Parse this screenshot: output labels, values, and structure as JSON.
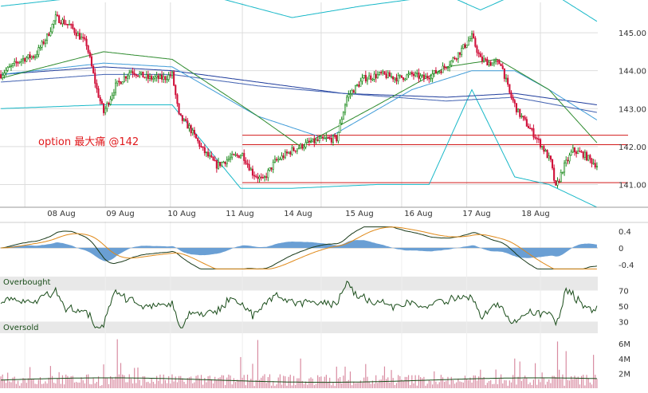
{
  "chart_data": [
    {
      "type": "candlestick",
      "annotation": "option 最大痛 @142",
      "y_ticks": [
        "145.00",
        "144.00",
        "143.00",
        "142.00",
        "141.00"
      ],
      "x_ticks": [
        "08 Aug",
        "09 Aug",
        "10 Aug",
        "11 Aug",
        "14 Aug",
        "15 Aug",
        "16 Aug",
        "17 Aug",
        "18 Aug"
      ],
      "ylim": [
        140.4,
        145.8
      ],
      "grid": true,
      "anchors": [
        [
          0,
          143.9
        ],
        [
          12,
          144.3
        ],
        [
          20,
          144.4
        ],
        [
          27,
          144.9
        ],
        [
          32,
          145.4
        ],
        [
          40,
          145.2
        ],
        [
          50,
          144.7
        ],
        [
          56,
          143.5
        ],
        [
          60,
          142.9
        ],
        [
          67,
          143.6
        ],
        [
          76,
          144.0
        ],
        [
          86,
          143.8
        ],
        [
          95,
          143.8
        ],
        [
          100,
          143.9
        ],
        [
          104,
          142.8
        ],
        [
          110,
          142.5
        ],
        [
          118,
          141.9
        ],
        [
          126,
          141.5
        ],
        [
          134,
          141.7
        ],
        [
          141,
          141.8
        ],
        [
          147,
          141.3
        ],
        [
          153,
          141.1
        ],
        [
          160,
          141.6
        ],
        [
          170,
          141.9
        ],
        [
          180,
          142.1
        ],
        [
          190,
          142.2
        ],
        [
          196,
          142.2
        ],
        [
          202,
          143.3
        ],
        [
          212,
          143.8
        ],
        [
          222,
          143.9
        ],
        [
          232,
          143.8
        ],
        [
          240,
          143.9
        ],
        [
          247,
          143.8
        ],
        [
          256,
          144.0
        ],
        [
          262,
          144.2
        ],
        [
          268,
          144.5
        ],
        [
          275,
          144.9
        ],
        [
          280,
          144.3
        ],
        [
          286,
          144.2
        ],
        [
          292,
          144.2
        ],
        [
          297,
          143.4
        ],
        [
          302,
          142.9
        ],
        [
          310,
          142.4
        ],
        [
          316,
          142.0
        ],
        [
          321,
          141.6
        ],
        [
          324,
          140.9
        ],
        [
          328,
          141.4
        ],
        [
          334,
          141.9
        ],
        [
          340,
          141.8
        ],
        [
          348,
          141.5
        ]
      ],
      "reference_lines": [
        142.3,
        142.05,
        141.05
      ],
      "bollinger_upper": [
        [
          0,
          145.7
        ],
        [
          60,
          146.0
        ],
        [
          120,
          146.0
        ],
        [
          170,
          145.4
        ],
        [
          210,
          145.7
        ],
        [
          260,
          146.0
        ],
        [
          280,
          145.6
        ],
        [
          300,
          146.0
        ],
        [
          320,
          146.1
        ],
        [
          348,
          145.3
        ]
      ],
      "bollinger_lower": [
        [
          0,
          143.0
        ],
        [
          60,
          143.1
        ],
        [
          100,
          143.1
        ],
        [
          140,
          140.9
        ],
        [
          170,
          140.9
        ],
        [
          220,
          141.0
        ],
        [
          250,
          141.0
        ],
        [
          275,
          143.5
        ],
        [
          300,
          141.2
        ],
        [
          320,
          141.0
        ],
        [
          348,
          140.4
        ]
      ],
      "ma_green": [
        [
          0,
          143.8
        ],
        [
          60,
          144.5
        ],
        [
          100,
          144.3
        ],
        [
          150,
          142.8
        ],
        [
          175,
          142.0
        ],
        [
          220,
          143.1
        ],
        [
          260,
          144.1
        ],
        [
          290,
          144.3
        ],
        [
          320,
          143.5
        ],
        [
          348,
          142.1
        ]
      ],
      "ma_blue_1": [
        [
          0,
          143.9
        ],
        [
          60,
          144.1
        ],
        [
          100,
          144.0
        ],
        [
          150,
          143.7
        ],
        [
          200,
          143.4
        ],
        [
          260,
          143.3
        ],
        [
          300,
          143.4
        ],
        [
          348,
          143.1
        ]
      ],
      "ma_blue_2": [
        [
          0,
          143.7
        ],
        [
          60,
          143.9
        ],
        [
          100,
          143.9
        ],
        [
          150,
          143.6
        ],
        [
          200,
          143.4
        ],
        [
          260,
          143.2
        ],
        [
          300,
          143.3
        ],
        [
          348,
          142.9
        ]
      ],
      "ma_cyan": [
        [
          0,
          143.9
        ],
        [
          60,
          144.2
        ],
        [
          100,
          144.1
        ],
        [
          150,
          142.8
        ],
        [
          190,
          142.2
        ],
        [
          240,
          143.5
        ],
        [
          275,
          144.0
        ],
        [
          300,
          144.0
        ],
        [
          320,
          143.5
        ],
        [
          348,
          142.7
        ]
      ]
    },
    {
      "type": "line",
      "indicator": "MACD",
      "y_ticks": [
        "0.4",
        "0",
        "-0.4"
      ],
      "ylim": [
        -0.55,
        0.55
      ]
    },
    {
      "type": "line",
      "indicator": "RSI",
      "y_ticks": [
        "70",
        "50",
        "30"
      ],
      "labels": [
        "Overbought",
        "Oversold"
      ],
      "ylim": [
        15,
        90
      ]
    },
    {
      "type": "bar",
      "indicator": "Volume",
      "y_ticks": [
        "6M",
        "4M",
        "2M"
      ],
      "ylim": [
        0,
        7.2
      ],
      "spikes": [
        [
          29,
          3.0
        ],
        [
          68,
          6.6
        ],
        [
          70,
          3.4
        ],
        [
          140,
          4.2
        ],
        [
          150,
          6.5
        ],
        [
          175,
          4.0
        ],
        [
          280,
          2.5
        ],
        [
          300,
          4.0
        ],
        [
          303,
          3.6
        ],
        [
          325,
          6.3
        ],
        [
          330,
          5.0
        ],
        [
          346,
          4.5
        ]
      ]
    }
  ]
}
